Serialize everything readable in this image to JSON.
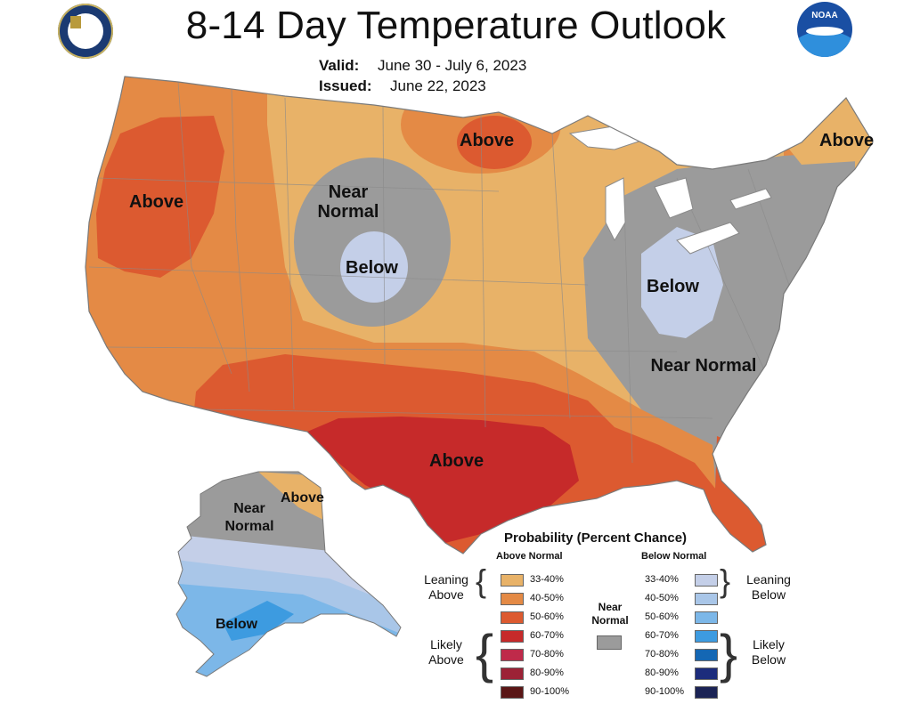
{
  "title": "8-14 Day Temperature Outlook",
  "valid": {
    "label": "Valid:",
    "value": "June 30 - July 6, 2023"
  },
  "issued": {
    "label": "Issued:",
    "value": "June 22, 2023"
  },
  "logos": {
    "left": "department-of-commerce-seal",
    "right": "noaa-logo",
    "right_text": "NOAA"
  },
  "colors": {
    "above_33_40": "#e8b268",
    "above_40_50": "#e48a45",
    "above_50_60": "#dc5a30",
    "above_60_70": "#c62a2a",
    "above_70_80": "#bf2a4a",
    "above_80_90": "#9c2236",
    "above_90_100": "#5a1616",
    "near_normal": "#9b9b9b",
    "below_33_40": "#c4cfe8",
    "below_40_50": "#a9c6e8",
    "below_50_60": "#7cb7e8",
    "below_60_70": "#3d9be0",
    "below_70_80": "#1467b4",
    "below_80_90": "#1c2c7c",
    "below_90_100": "#1b2355",
    "land_outline": "#8a8a8a"
  },
  "region_labels": {
    "west_above": "Above",
    "north_near": "Near Normal",
    "north_below": "Below",
    "mn_above": "Above",
    "maine_above": "Above",
    "ohio_below": "Below",
    "se_near": "Near Normal",
    "texas_above": "Above",
    "ak_near": "Near Normal",
    "ak_above": "Above",
    "ak_below": "Below"
  },
  "legend": {
    "title": "Probability (Percent Chance)",
    "above_header": "Above Normal",
    "below_header": "Below Normal",
    "near_label": "Near Normal",
    "leaning_above": "Leaning Above",
    "likely_above": "Likely Above",
    "leaning_below": "Leaning Below",
    "likely_below": "Likely Below",
    "above_rows": [
      "33-40%",
      "40-50%",
      "50-60%",
      "60-70%",
      "70-80%",
      "80-90%",
      "90-100%"
    ],
    "below_rows": [
      "33-40%",
      "40-50%",
      "50-60%",
      "60-70%",
      "70-80%",
      "80-90%",
      "90-100%"
    ]
  }
}
